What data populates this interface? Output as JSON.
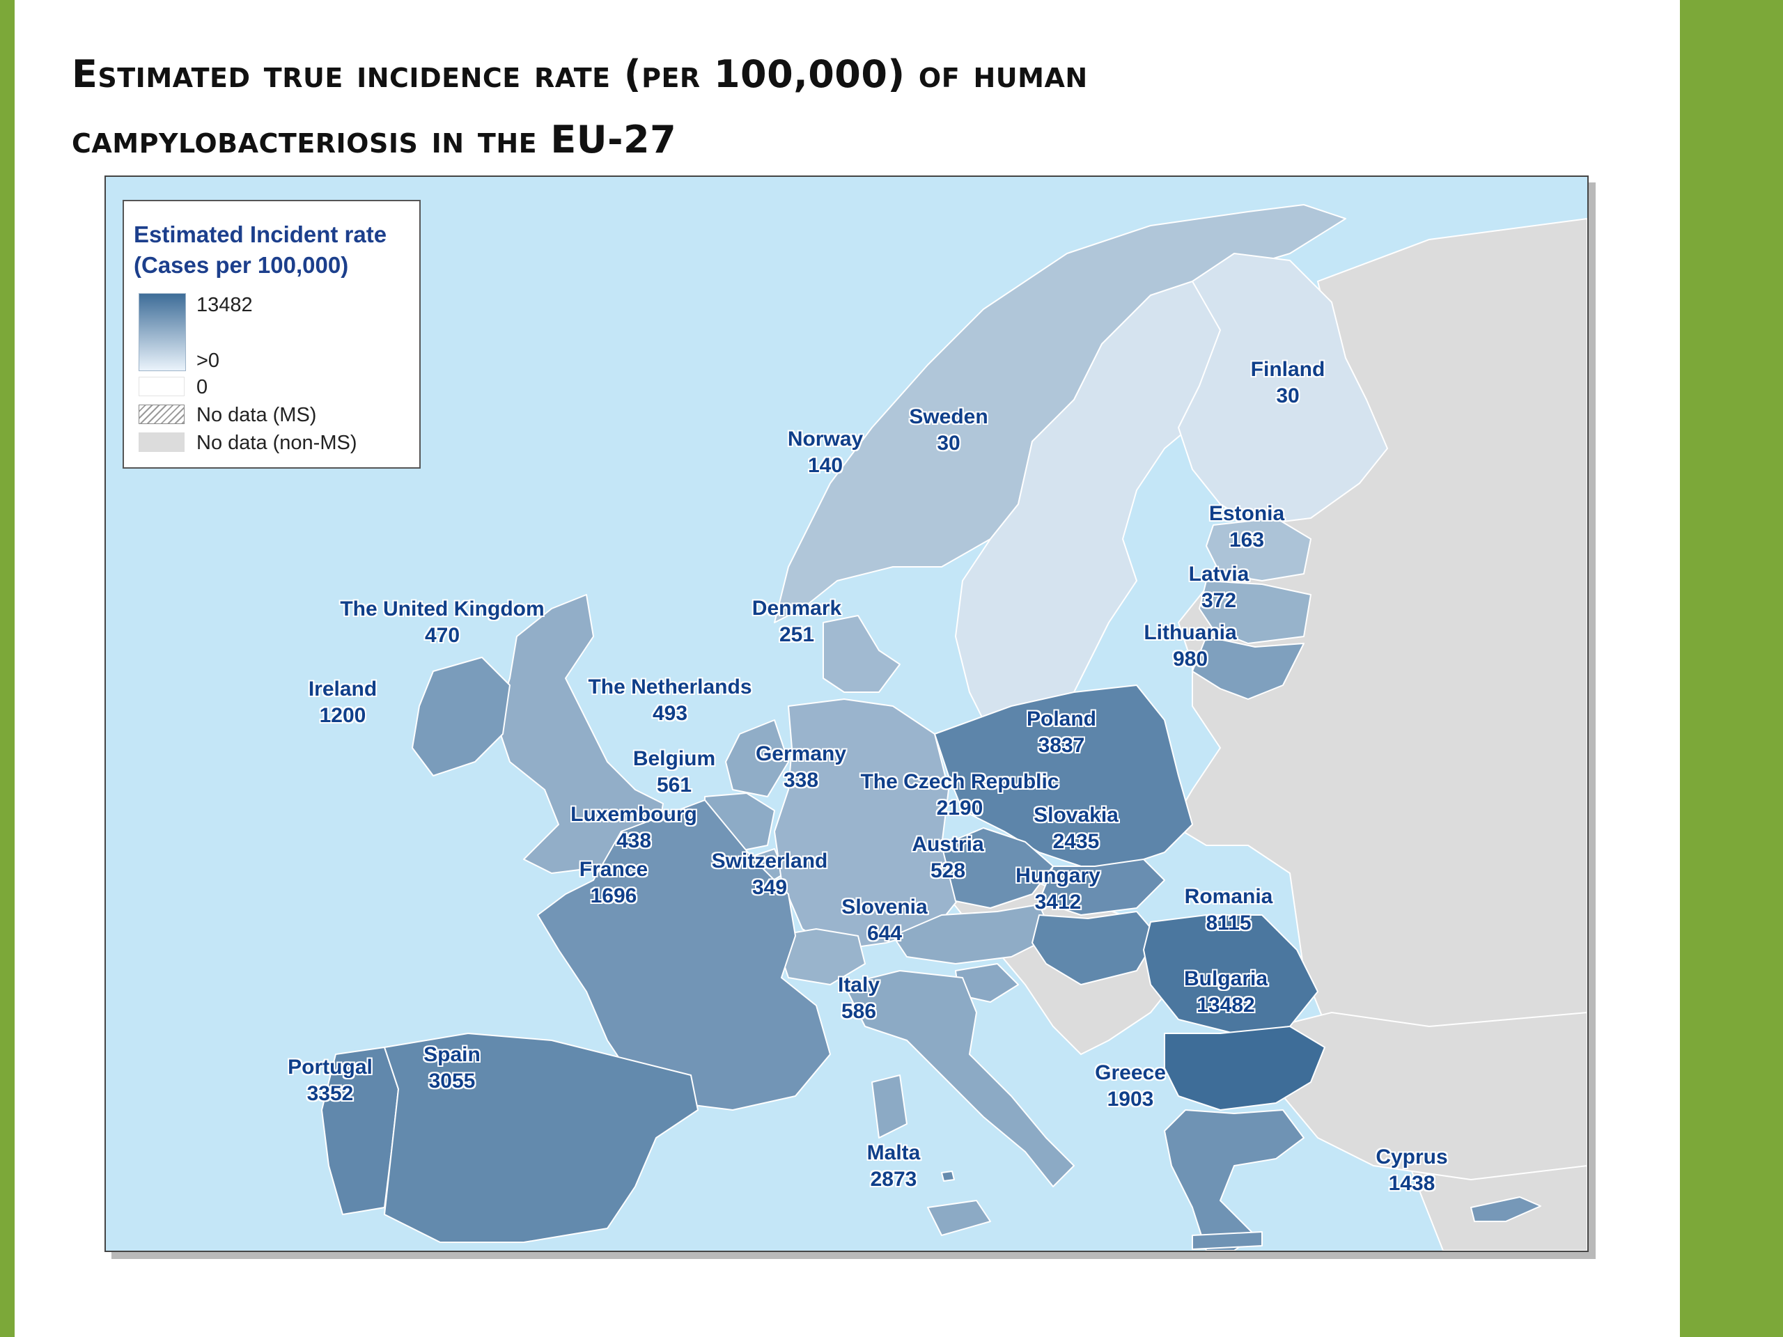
{
  "slide": {
    "title_line1": "Estimated true incidence rate (per 100,000) of human",
    "title_line2": "campylobacteriosis in the EU-27",
    "accent_color": "#7ca839"
  },
  "legend": {
    "title_line1": "Estimated Incident rate",
    "title_line2": "(Cases per 100,000)",
    "max_label": "13482",
    "positive_label": ">0",
    "zero_label": "0",
    "no_data_ms_label": "No data (MS)",
    "no_data_nonms_label": "No data (non-MS)",
    "colors": {
      "high": "#3e6d98",
      "low": "#eaf3fb",
      "zero": "#ffffff",
      "non_ms": "#dcdcdc",
      "sea": "#c4e6f7"
    }
  },
  "countries": [
    {
      "id": "uk",
      "name": "The United Kingdom",
      "value": "470",
      "rate": 470
    },
    {
      "id": "ie",
      "name": "Ireland",
      "value": "1200",
      "rate": 1200
    },
    {
      "id": "no",
      "name": "Norway",
      "value": "140",
      "rate": 140
    },
    {
      "id": "se",
      "name": "Sweden",
      "value": "30",
      "rate": 30
    },
    {
      "id": "fi",
      "name": "Finland",
      "value": "30",
      "rate": 30
    },
    {
      "id": "ee",
      "name": "Estonia",
      "value": "163",
      "rate": 163
    },
    {
      "id": "lv",
      "name": "Latvia",
      "value": "372",
      "rate": 372
    },
    {
      "id": "lt",
      "name": "Lithuania",
      "value": "980",
      "rate": 980
    },
    {
      "id": "dk",
      "name": "Denmark",
      "value": "251",
      "rate": 251
    },
    {
      "id": "nl",
      "name": "The Netherlands",
      "value": "493",
      "rate": 493
    },
    {
      "id": "be",
      "name": "Belgium",
      "value": "561",
      "rate": 561
    },
    {
      "id": "lu",
      "name": "Luxembourg",
      "value": "438",
      "rate": 438
    },
    {
      "id": "fr",
      "name": "France",
      "value": "1696",
      "rate": 1696
    },
    {
      "id": "de",
      "name": "Germany",
      "value": "338",
      "rate": 338
    },
    {
      "id": "pl",
      "name": "Poland",
      "value": "3837",
      "rate": 3837
    },
    {
      "id": "cz",
      "name": "The Czech Republic",
      "value": "2190",
      "rate": 2190
    },
    {
      "id": "sk",
      "name": "Slovakia",
      "value": "2435",
      "rate": 2435
    },
    {
      "id": "at",
      "name": "Austria",
      "value": "528",
      "rate": 528
    },
    {
      "id": "ch",
      "name": "Switzerland",
      "value": "349",
      "rate": 349
    },
    {
      "id": "hu",
      "name": "Hungary",
      "value": "3412",
      "rate": 3412
    },
    {
      "id": "si",
      "name": "Slovenia",
      "value": "644",
      "rate": 644
    },
    {
      "id": "ro",
      "name": "Romania",
      "value": "8115",
      "rate": 8115
    },
    {
      "id": "bg",
      "name": "Bulgaria",
      "value": "13482",
      "rate": 13482
    },
    {
      "id": "it",
      "name": "Italy",
      "value": "586",
      "rate": 586
    },
    {
      "id": "pt",
      "name": "Portugal",
      "value": "3352",
      "rate": 3352
    },
    {
      "id": "es",
      "name": "Spain",
      "value": "3055",
      "rate": 3055
    },
    {
      "id": "gr",
      "name": "Greece",
      "value": "1903",
      "rate": 1903
    },
    {
      "id": "mt",
      "name": "Malta",
      "value": "2873",
      "rate": 2873
    },
    {
      "id": "cy",
      "name": "Cyprus",
      "value": "1438",
      "rate": 1438
    }
  ]
}
